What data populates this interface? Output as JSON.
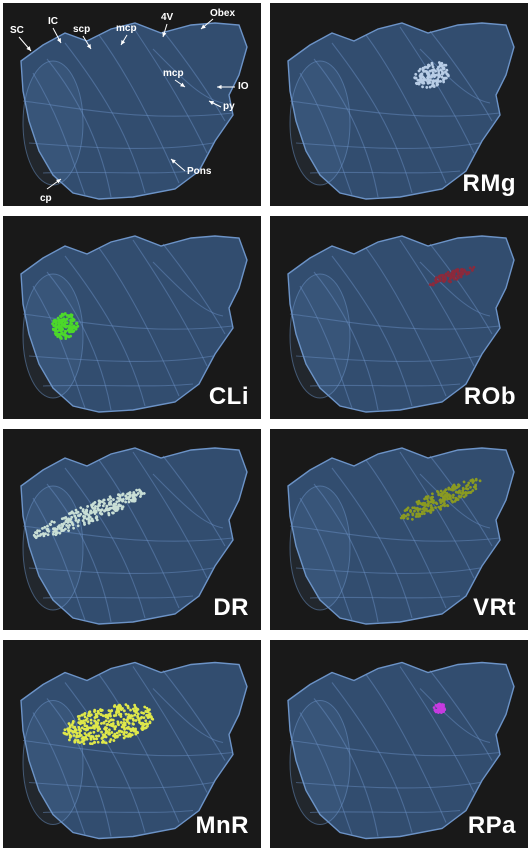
{
  "figure": {
    "colors": {
      "background": "#191919",
      "brainstem_fill": "#3b5f8c",
      "brainstem_edge": "#6c93c7",
      "label_text": "#ffffff"
    },
    "panels": [
      {
        "id": "anatomy",
        "label": "",
        "dot_color": null,
        "annotations": [
          "SC",
          "IC",
          "scp",
          "mcp",
          "4V",
          "Obex",
          "mcp",
          "IO",
          "py",
          "Pons",
          "cp"
        ]
      },
      {
        "id": "rmg",
        "label": "RMg",
        "dot_color": "#b8cde6"
      },
      {
        "id": "cli",
        "label": "CLi",
        "dot_color": "#4cd82a"
      },
      {
        "id": "rob",
        "label": "ROb",
        "dot_color": "#8b2a3c"
      },
      {
        "id": "dr",
        "label": "DR",
        "dot_color": "#c9dfd6"
      },
      {
        "id": "vrt",
        "label": "VRt",
        "dot_color": "#8a9a22"
      },
      {
        "id": "mnr",
        "label": "MnR",
        "dot_color": "#dfe84a"
      },
      {
        "id": "rpa",
        "label": "RPa",
        "dot_color": "#c63be0"
      }
    ]
  }
}
